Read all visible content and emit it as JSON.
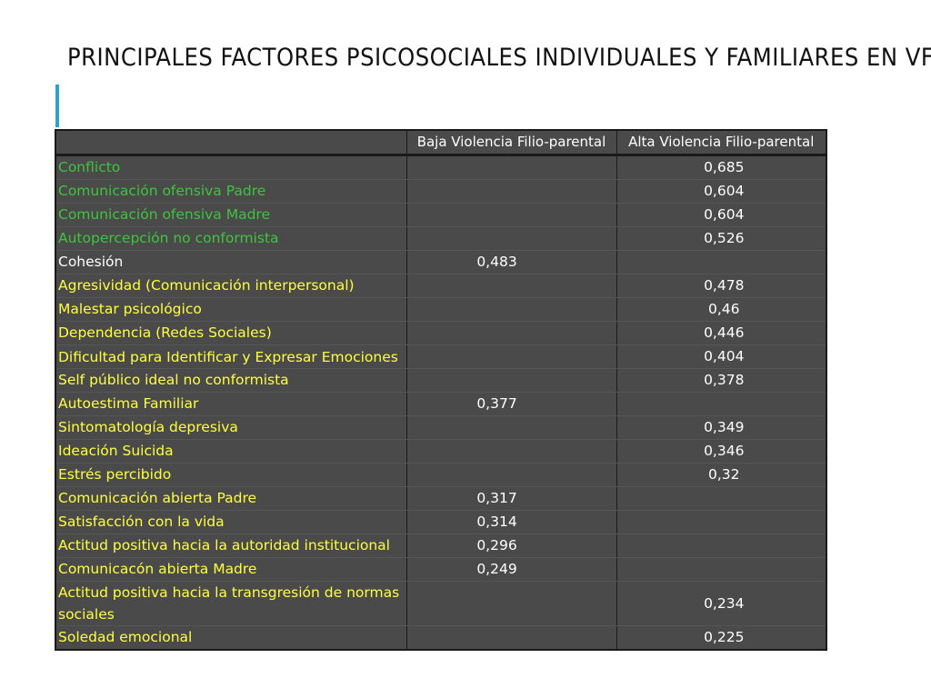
{
  "title": "PRINCIPALES FACTORES PSICOSOCIALES INDIVIDUALES Y FAMILIARES EN VFP",
  "colors": {
    "accent_bar": "#2e9fd0",
    "table_background": "#4a4a4a",
    "green_label": "#3ec43e",
    "white_label": "#ffffff",
    "yellow_label": "#ffff40"
  },
  "table": {
    "headers": [
      "",
      "Baja Violencia Filio-parental",
      "Alta Violencia Filio-parental"
    ],
    "rows": [
      {
        "factor": "Conflicto",
        "color": "green",
        "baja": "",
        "alta": "0,685"
      },
      {
        "factor": "Comunicación ofensiva Padre",
        "color": "green",
        "baja": "",
        "alta": "0,604"
      },
      {
        "factor": "Comunicación ofensiva Madre",
        "color": "green",
        "baja": "",
        "alta": "0,604"
      },
      {
        "factor": "Autopercepción no conformista",
        "color": "green",
        "baja": "",
        "alta": "0,526"
      },
      {
        "factor": "Cohesión",
        "color": "white",
        "baja": "0,483",
        "alta": ""
      },
      {
        "factor": "Agresividad (Comunicación interpersonal)",
        "color": "yellow",
        "baja": "",
        "alta": "0,478"
      },
      {
        "factor": "Malestar psicológico",
        "color": "yellow",
        "baja": "",
        "alta": "0,46"
      },
      {
        "factor": "Dependencia (Redes Sociales)",
        "color": "yellow",
        "baja": "",
        "alta": "0,446"
      },
      {
        "factor": "Dificultad para Identificar y Expresar Emociones",
        "color": "yellow",
        "baja": "",
        "alta": "0,404"
      },
      {
        "factor": "Self público ideal no conformista",
        "color": "yellow",
        "baja": "",
        "alta": "0,378"
      },
      {
        "factor": "Autoestima Familiar",
        "color": "yellow",
        "baja": "0,377",
        "alta": ""
      },
      {
        "factor": "Sintomatología depresiva",
        "color": "yellow",
        "baja": "",
        "alta": "0,349"
      },
      {
        "factor": "Ideación Suicida",
        "color": "yellow",
        "baja": "",
        "alta": "0,346"
      },
      {
        "factor": "Estrés percibido",
        "color": "yellow",
        "baja": "",
        "alta": "0,32"
      },
      {
        "factor": "Comunicación abierta Padre",
        "color": "yellow",
        "baja": "0,317",
        "alta": ""
      },
      {
        "factor": "Satisfacción con la vida",
        "color": "yellow",
        "baja": "0,314",
        "alta": ""
      },
      {
        "factor": "Actitud positiva hacia la autoridad institucional",
        "color": "yellow",
        "baja": "0,296",
        "alta": ""
      },
      {
        "factor": "Comunicacón abierta Madre",
        "color": "yellow",
        "baja": "0,249",
        "alta": ""
      },
      {
        "factor": "Actitud positiva hacia la transgresión de normas sociales",
        "color": "yellow",
        "baja": "",
        "alta": "0,234"
      },
      {
        "factor": "Soledad emocional",
        "color": "yellow",
        "baja": "",
        "alta": "0,225"
      }
    ]
  }
}
